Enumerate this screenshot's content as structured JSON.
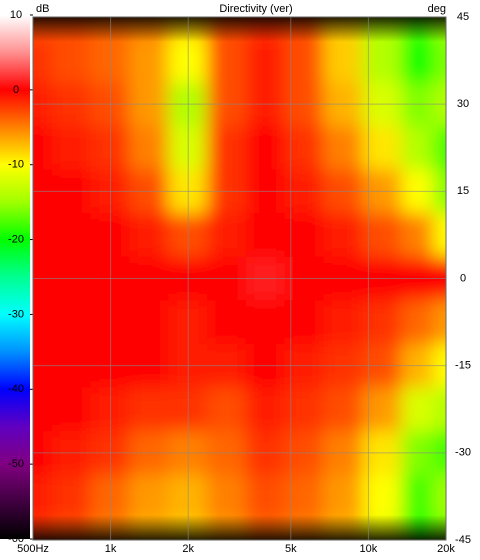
{
  "chart_data": {
    "type": "heatmap",
    "title": "Directivity (ver)",
    "z_label": "dB",
    "y_label": "deg",
    "x": [
      500,
      700,
      1000,
      1400,
      2000,
      2800,
      4000,
      5600,
      8000,
      11300,
      16000,
      20000
    ],
    "y": [
      45,
      37.5,
      30,
      22.5,
      15,
      7.5,
      0,
      -7.5,
      -15,
      -22.5,
      -30,
      -37.5,
      -45
    ],
    "values": [
      [
        -3,
        -3,
        -4,
        -5,
        -8,
        -3,
        -2,
        -3,
        -8,
        -14,
        -18,
        -15
      ],
      [
        -2,
        -3,
        -4,
        -6,
        -10,
        -3,
        -1,
        -3,
        -8,
        -14,
        -20,
        -16
      ],
      [
        -1,
        -2,
        -3,
        -6,
        -14,
        -3,
        -1,
        -3,
        -7,
        -12,
        -16,
        -14
      ],
      [
        0,
        -1,
        -2,
        -5,
        -12,
        -2,
        0,
        -2,
        -5,
        -9,
        -14,
        -18
      ],
      [
        0,
        0,
        -1,
        -3,
        -9,
        -2,
        0,
        -1,
        -3,
        -6,
        -10,
        -16
      ],
      [
        0,
        0,
        0,
        -1,
        -3,
        -1,
        0,
        0,
        -1,
        -3,
        -5,
        -10
      ],
      [
        0,
        0,
        0,
        0,
        0,
        0,
        1,
        0,
        0,
        0,
        0,
        0
      ],
      [
        0,
        0,
        0,
        0,
        -1,
        0,
        0,
        0,
        -1,
        -2,
        -4,
        -6
      ],
      [
        0,
        0,
        0,
        0,
        -1,
        -1,
        0,
        -1,
        -2,
        -3,
        -7,
        -10
      ],
      [
        0,
        0,
        -1,
        -2,
        -2,
        -3,
        -1,
        -2,
        -3,
        -6,
        -12,
        -14
      ],
      [
        0,
        -1,
        -2,
        -4,
        -5,
        -4,
        -2,
        -3,
        -5,
        -9,
        -16,
        -18
      ],
      [
        -1,
        -2,
        -4,
        -6,
        -7,
        -5,
        -3,
        -4,
        -6,
        -10,
        -18,
        -15
      ],
      [
        -2,
        -3,
        -5,
        -7,
        -8,
        -6,
        -4,
        -5,
        -7,
        -11,
        -20,
        -16
      ]
    ],
    "xlim": [
      500,
      20000
    ],
    "log_x": true,
    "xticks": [
      {
        "value": 500,
        "label": "500Hz"
      },
      {
        "value": 1000,
        "label": "1k"
      },
      {
        "value": 2000,
        "label": "2k"
      },
      {
        "value": 5000,
        "label": "5k"
      },
      {
        "value": 10000,
        "label": "10k"
      },
      {
        "value": 20000,
        "label": "20k"
      }
    ],
    "ylim": [
      -45,
      45
    ],
    "yticks": [
      45,
      30,
      15,
      0,
      -15,
      -30,
      -45
    ],
    "zlim": [
      -60,
      10
    ],
    "zticks": [
      10,
      0,
      -10,
      -20,
      -30,
      -40,
      -50,
      -60
    ],
    "colormap": [
      "#000000",
      "#400040",
      "#800080",
      "#6000c0",
      "#0000ff",
      "#0090ff",
      "#00ffff",
      "#00ff90",
      "#00ff00",
      "#a0ff00",
      "#ffff00",
      "#ff8000",
      "#ff0000",
      "#ff9090",
      "#ffffff"
    ],
    "grid": true
  }
}
